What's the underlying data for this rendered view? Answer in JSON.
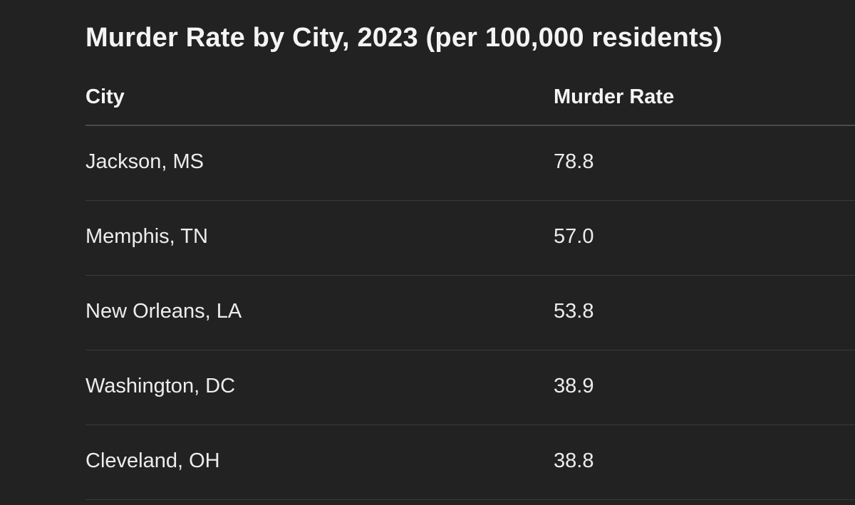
{
  "title": "Murder Rate by City, 2023 (per 100,000 residents)",
  "table": {
    "headers": [
      "City",
      "Murder Rate"
    ],
    "rows": [
      [
        "Jackson, MS",
        "78.8"
      ],
      [
        "Memphis, TN",
        "57.0"
      ],
      [
        "New Orleans, LA",
        "53.8"
      ],
      [
        "Washington, DC",
        "38.9"
      ],
      [
        "Cleveland, OH",
        "38.8"
      ]
    ]
  }
}
